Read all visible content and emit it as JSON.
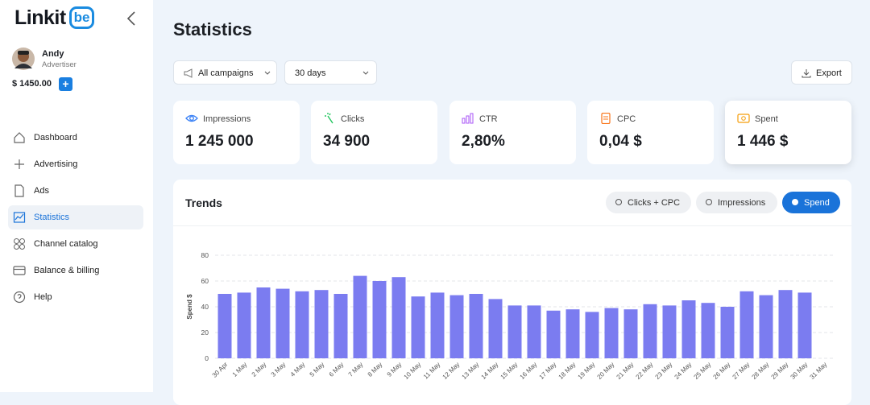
{
  "sidebar": {
    "logo": "Linkit",
    "logo_badge": "be",
    "user": {
      "name": "Andy",
      "role": "Advertiser"
    },
    "balance": "$ 1450.00",
    "balance_add": "+",
    "nav": [
      "Dashboard",
      "Advertising",
      "Ads",
      "Statistics",
      "Channel catalog",
      "Balance & billing",
      "Help"
    ]
  },
  "header": {
    "title": "Statistics",
    "filters": [
      "All campaigns",
      "30 days"
    ],
    "export": "Export"
  },
  "kpis": [
    {
      "label": "Impressions",
      "value": "1 245 000"
    },
    {
      "label": "Clicks",
      "value": "34 900"
    },
    {
      "label": "CTR",
      "value": "2,80%"
    },
    {
      "label": "CPC",
      "value": "0,04 $"
    },
    {
      "label": "Spent",
      "value": "1 446 $"
    }
  ],
  "trends": {
    "title": "Trends",
    "toggles": [
      "Clicks + CPC",
      "Impressions",
      "Spend"
    ]
  },
  "chart_data": {
    "type": "bar",
    "y_label": "Spend $",
    "categories": [
      "30 Apr",
      "1 May",
      "2 May",
      "3 May",
      "4 May",
      "5 May",
      "6 May",
      "7 May",
      "8 May",
      "9 May",
      "10 May",
      "11 May",
      "12 May",
      "13 May",
      "14 May",
      "15 May",
      "16 May",
      "17 May",
      "18 May",
      "19 May",
      "20 May",
      "21 May",
      "22 May",
      "23 May",
      "24 May",
      "25 May",
      "26 May",
      "27 May",
      "28 May",
      "29 May",
      "30 May",
      "31 May"
    ],
    "values": [
      50,
      51,
      55,
      54,
      52,
      53,
      50,
      64,
      60,
      63,
      48,
      51,
      49,
      50,
      46,
      41,
      41,
      37,
      38,
      36,
      39,
      38,
      42,
      41,
      45,
      43,
      40,
      52,
      49,
      53,
      51,
      null
    ],
    "color": "#7b7cf0",
    "ylim": [
      0,
      80
    ],
    "yticks": [
      0,
      20,
      40,
      60,
      80
    ],
    "grid": true
  }
}
